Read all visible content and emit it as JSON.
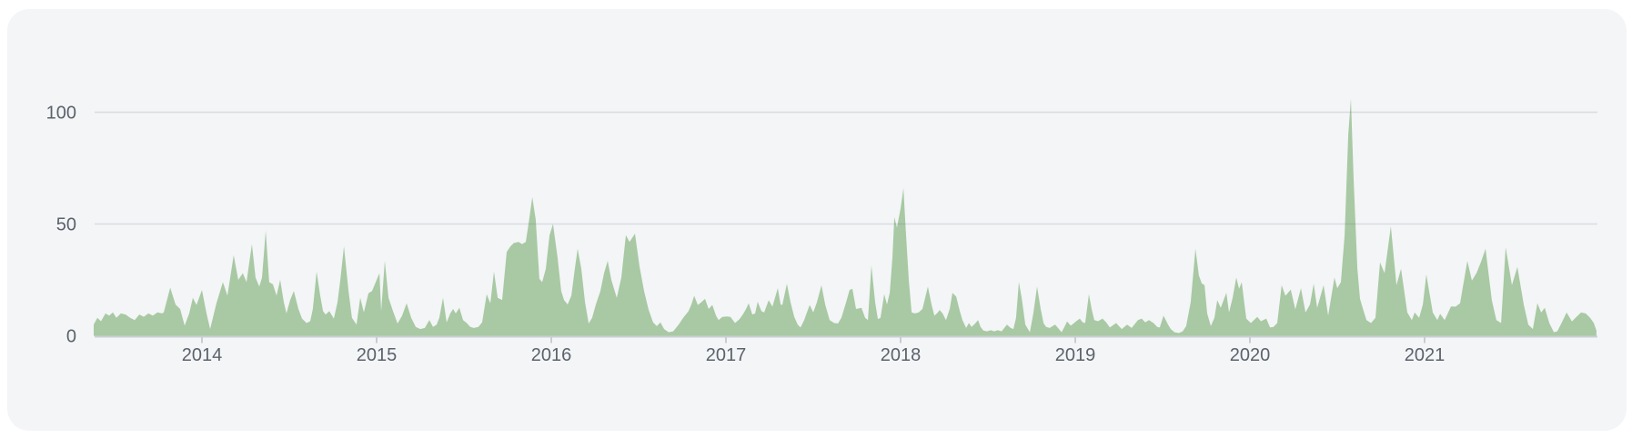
{
  "page": {
    "background": "#ffffff"
  },
  "card": {
    "background": "#f3f5f7",
    "corner_radius": 24
  },
  "chart_data": {
    "type": "area",
    "title": "",
    "xlabel": "",
    "ylabel": "",
    "legend": "none",
    "grid": "horizontal",
    "ylim": [
      0,
      110
    ],
    "xlim": [
      2013.38,
      2021.99
    ],
    "x_ticks": [
      {
        "label": "2014",
        "value": 2014
      },
      {
        "label": "2015",
        "value": 2015
      },
      {
        "label": "2016",
        "value": 2016
      },
      {
        "label": "2017",
        "value": 2017
      },
      {
        "label": "2018",
        "value": 2018
      },
      {
        "label": "2019",
        "value": 2019
      },
      {
        "label": "2020",
        "value": 2020
      },
      {
        "label": "2021",
        "value": 2021
      }
    ],
    "y_ticks": [
      {
        "label": "100",
        "value": 100
      },
      {
        "label": "50",
        "value": 50
      },
      {
        "label": "0",
        "value": 0
      }
    ],
    "style": {
      "area_fill": "#a8c9a3",
      "grid_color": "rgba(100,112,128,0.18)",
      "axis_color": "rgba(100,112,128,0.28)",
      "tick_color": "#c9cdd2",
      "label_color": "#5c626b"
    },
    "points": [
      [
        2013.38,
        5
      ],
      [
        2013.401,
        8
      ],
      [
        2013.422,
        6.5
      ],
      [
        2013.448,
        10
      ],
      [
        2013.469,
        9
      ],
      [
        2013.49,
        10.5
      ],
      [
        2013.51,
        8
      ],
      [
        2013.536,
        10
      ],
      [
        2013.563,
        9.5
      ],
      [
        2013.589,
        8
      ],
      [
        2013.615,
        7
      ],
      [
        2013.641,
        9.5
      ],
      [
        2013.667,
        8.5
      ],
      [
        2013.693,
        10
      ],
      [
        2013.719,
        9
      ],
      [
        2013.745,
        10.5
      ],
      [
        2013.771,
        10
      ],
      [
        2013.781,
        10.4
      ],
      [
        2013.818,
        21.5
      ],
      [
        2013.849,
        14
      ],
      [
        2013.875,
        12
      ],
      [
        2013.901,
        4.5
      ],
      [
        2013.927,
        10
      ],
      [
        2013.948,
        17
      ],
      [
        2013.969,
        13.8
      ],
      [
        2014.0,
        20.5
      ],
      [
        2014.026,
        10
      ],
      [
        2014.047,
        3
      ],
      [
        2014.083,
        14.5
      ],
      [
        2014.12,
        24
      ],
      [
        2014.146,
        18
      ],
      [
        2014.182,
        36
      ],
      [
        2014.208,
        25
      ],
      [
        2014.234,
        28
      ],
      [
        2014.255,
        24
      ],
      [
        2014.286,
        41
      ],
      [
        2014.307,
        26
      ],
      [
        2014.328,
        22
      ],
      [
        2014.344,
        26
      ],
      [
        2014.365,
        47
      ],
      [
        2014.385,
        24
      ],
      [
        2014.406,
        23
      ],
      [
        2014.427,
        18
      ],
      [
        2014.448,
        25
      ],
      [
        2014.469,
        15
      ],
      [
        2014.484,
        10
      ],
      [
        2014.505,
        16
      ],
      [
        2014.526,
        20
      ],
      [
        2014.552,
        12
      ],
      [
        2014.573,
        7.7
      ],
      [
        2014.599,
        5.7
      ],
      [
        2014.62,
        6.5
      ],
      [
        2014.635,
        12
      ],
      [
        2014.656,
        28.7
      ],
      [
        2014.677,
        18
      ],
      [
        2014.693,
        11
      ],
      [
        2014.708,
        9.5
      ],
      [
        2014.729,
        11
      ],
      [
        2014.755,
        7.7
      ],
      [
        2014.776,
        15
      ],
      [
        2014.792,
        25
      ],
      [
        2014.813,
        40
      ],
      [
        2014.839,
        20
      ],
      [
        2014.859,
        8
      ],
      [
        2014.885,
        5
      ],
      [
        2014.906,
        17
      ],
      [
        2014.927,
        10.5
      ],
      [
        2014.953,
        19
      ],
      [
        2014.974,
        20
      ],
      [
        2014.995,
        24
      ],
      [
        2015.016,
        28
      ],
      [
        2015.026,
        11
      ],
      [
        2015.047,
        33.5
      ],
      [
        2015.068,
        17
      ],
      [
        2015.094,
        11
      ],
      [
        2015.12,
        5.5
      ],
      [
        2015.146,
        9
      ],
      [
        2015.172,
        14.5
      ],
      [
        2015.198,
        8
      ],
      [
        2015.224,
        4
      ],
      [
        2015.25,
        3
      ],
      [
        2015.276,
        3.5
      ],
      [
        2015.302,
        7
      ],
      [
        2015.323,
        4
      ],
      [
        2015.344,
        5
      ],
      [
        2015.359,
        8
      ],
      [
        2015.38,
        17
      ],
      [
        2015.401,
        6
      ],
      [
        2015.422,
        10
      ],
      [
        2015.438,
        12
      ],
      [
        2015.453,
        10
      ],
      [
        2015.474,
        12.5
      ],
      [
        2015.495,
        7
      ],
      [
        2015.516,
        5.7
      ],
      [
        2015.536,
        4
      ],
      [
        2015.557,
        3.5
      ],
      [
        2015.583,
        4
      ],
      [
        2015.604,
        6
      ],
      [
        2015.63,
        18.6
      ],
      [
        2015.651,
        14.5
      ],
      [
        2015.672,
        28.7
      ],
      [
        2015.693,
        17
      ],
      [
        2015.719,
        16
      ],
      [
        2015.745,
        37.5
      ],
      [
        2015.766,
        40
      ],
      [
        2015.786,
        41.5
      ],
      [
        2015.813,
        42
      ],
      [
        2015.833,
        41
      ],
      [
        2015.854,
        42
      ],
      [
        2015.87,
        50
      ],
      [
        2015.891,
        62
      ],
      [
        2015.911,
        52
      ],
      [
        2015.932,
        25.5
      ],
      [
        2015.948,
        24
      ],
      [
        2015.969,
        30
      ],
      [
        2015.99,
        45
      ],
      [
        2016.01,
        50
      ],
      [
        2016.036,
        35
      ],
      [
        2016.057,
        20
      ],
      [
        2016.073,
        16
      ],
      [
        2016.094,
        14
      ],
      [
        2016.115,
        18
      ],
      [
        2016.135,
        30
      ],
      [
        2016.151,
        38.9
      ],
      [
        2016.172,
        30
      ],
      [
        2016.193,
        15
      ],
      [
        2016.214,
        5.5
      ],
      [
        2016.234,
        8
      ],
      [
        2016.255,
        14
      ],
      [
        2016.281,
        20
      ],
      [
        2016.302,
        28
      ],
      [
        2016.323,
        33.5
      ],
      [
        2016.344,
        25
      ],
      [
        2016.375,
        17
      ],
      [
        2016.401,
        26
      ],
      [
        2016.427,
        45
      ],
      [
        2016.448,
        42
      ],
      [
        2016.479,
        45.7
      ],
      [
        2016.505,
        31
      ],
      [
        2016.531,
        20
      ],
      [
        2016.557,
        11.8
      ],
      [
        2016.583,
        6
      ],
      [
        2016.604,
        4.3
      ],
      [
        2016.625,
        6
      ],
      [
        2016.646,
        3
      ],
      [
        2016.672,
        1.6
      ],
      [
        2016.698,
        2
      ],
      [
        2016.729,
        5
      ],
      [
        2016.755,
        8
      ],
      [
        2016.786,
        11
      ],
      [
        2016.802,
        14
      ],
      [
        2016.818,
        17.9
      ],
      [
        2016.839,
        13.8
      ],
      [
        2016.859,
        15
      ],
      [
        2016.88,
        16.5
      ],
      [
        2016.901,
        12
      ],
      [
        2016.922,
        13.8
      ],
      [
        2016.943,
        9
      ],
      [
        2016.958,
        7
      ],
      [
        2016.979,
        8.4
      ],
      [
        2017.005,
        8.6
      ],
      [
        2017.026,
        8.4
      ],
      [
        2017.052,
        5.7
      ],
      [
        2017.078,
        7.5
      ],
      [
        2017.099,
        9.8
      ],
      [
        2017.115,
        12
      ],
      [
        2017.13,
        14.5
      ],
      [
        2017.151,
        9.5
      ],
      [
        2017.167,
        10
      ],
      [
        2017.182,
        15.2
      ],
      [
        2017.203,
        11
      ],
      [
        2017.219,
        10.4
      ],
      [
        2017.245,
        15.9
      ],
      [
        2017.266,
        13
      ],
      [
        2017.297,
        21.3
      ],
      [
        2017.313,
        14
      ],
      [
        2017.323,
        13.8
      ],
      [
        2017.349,
        23.3
      ],
      [
        2017.37,
        15
      ],
      [
        2017.391,
        8.4
      ],
      [
        2017.411,
        5
      ],
      [
        2017.427,
        3.7
      ],
      [
        2017.448,
        7
      ],
      [
        2017.479,
        13.8
      ],
      [
        2017.5,
        10.5
      ],
      [
        2017.521,
        15
      ],
      [
        2017.547,
        22.6
      ],
      [
        2017.568,
        14
      ],
      [
        2017.594,
        7
      ],
      [
        2017.62,
        5.7
      ],
      [
        2017.641,
        5.5
      ],
      [
        2017.661,
        8
      ],
      [
        2017.688,
        15
      ],
      [
        2017.708,
        20.5
      ],
      [
        2017.724,
        21
      ],
      [
        2017.745,
        12
      ],
      [
        2017.776,
        12.5
      ],
      [
        2017.797,
        8
      ],
      [
        2017.813,
        7
      ],
      [
        2017.833,
        31.4
      ],
      [
        2017.854,
        15
      ],
      [
        2017.87,
        7.5
      ],
      [
        2017.885,
        8
      ],
      [
        2017.906,
        18.6
      ],
      [
        2017.922,
        14
      ],
      [
        2017.938,
        19.2
      ],
      [
        2017.953,
        35
      ],
      [
        2017.964,
        53
      ],
      [
        2017.979,
        48.4
      ],
      [
        2018.0,
        57
      ],
      [
        2018.016,
        66
      ],
      [
        2018.031,
        45
      ],
      [
        2018.047,
        25
      ],
      [
        2018.063,
        10.4
      ],
      [
        2018.083,
        10
      ],
      [
        2018.104,
        10.5
      ],
      [
        2018.125,
        12
      ],
      [
        2018.156,
        22
      ],
      [
        2018.177,
        14
      ],
      [
        2018.193,
        9
      ],
      [
        2018.208,
        10
      ],
      [
        2018.224,
        11.5
      ],
      [
        2018.24,
        10
      ],
      [
        2018.26,
        7
      ],
      [
        2018.281,
        12
      ],
      [
        2018.297,
        19.2
      ],
      [
        2018.318,
        17.5
      ],
      [
        2018.339,
        11
      ],
      [
        2018.354,
        7
      ],
      [
        2018.375,
        3.5
      ],
      [
        2018.391,
        5.7
      ],
      [
        2018.406,
        4
      ],
      [
        2018.427,
        5.5
      ],
      [
        2018.443,
        7
      ],
      [
        2018.458,
        4
      ],
      [
        2018.474,
        2.3
      ],
      [
        2018.495,
        2
      ],
      [
        2018.516,
        2.5
      ],
      [
        2018.536,
        2
      ],
      [
        2018.557,
        2.5
      ],
      [
        2018.578,
        2
      ],
      [
        2018.594,
        3.5
      ],
      [
        2018.609,
        5
      ],
      [
        2018.63,
        3.5
      ],
      [
        2018.646,
        3
      ],
      [
        2018.661,
        8
      ],
      [
        2018.677,
        24
      ],
      [
        2018.693,
        17
      ],
      [
        2018.714,
        5
      ],
      [
        2018.729,
        3
      ],
      [
        2018.74,
        1.6
      ],
      [
        2018.76,
        10
      ],
      [
        2018.781,
        22
      ],
      [
        2018.802,
        12
      ],
      [
        2018.818,
        5.7
      ],
      [
        2018.833,
        4
      ],
      [
        2018.854,
        3.5
      ],
      [
        2018.87,
        4.3
      ],
      [
        2018.885,
        5
      ],
      [
        2018.901,
        3.5
      ],
      [
        2018.922,
        1.6
      ],
      [
        2018.938,
        4
      ],
      [
        2018.953,
        6.4
      ],
      [
        2018.974,
        4.5
      ],
      [
        2018.99,
        5.5
      ],
      [
        2019.005,
        6.5
      ],
      [
        2019.026,
        7.7
      ],
      [
        2019.042,
        6
      ],
      [
        2019.057,
        5.7
      ],
      [
        2019.078,
        18.6
      ],
      [
        2019.094,
        12
      ],
      [
        2019.109,
        7
      ],
      [
        2019.13,
        6.5
      ],
      [
        2019.156,
        7.7
      ],
      [
        2019.177,
        6
      ],
      [
        2019.198,
        3.7
      ],
      [
        2019.234,
        5.7
      ],
      [
        2019.266,
        3
      ],
      [
        2019.297,
        5
      ],
      [
        2019.323,
        3.5
      ],
      [
        2019.359,
        7
      ],
      [
        2019.38,
        7.7
      ],
      [
        2019.401,
        6
      ],
      [
        2019.422,
        7
      ],
      [
        2019.448,
        5.7
      ],
      [
        2019.469,
        4
      ],
      [
        2019.484,
        3.7
      ],
      [
        2019.505,
        9
      ],
      [
        2019.531,
        5
      ],
      [
        2019.547,
        3
      ],
      [
        2019.568,
        1.6
      ],
      [
        2019.594,
        1.2
      ],
      [
        2019.615,
        2
      ],
      [
        2019.635,
        4.3
      ],
      [
        2019.661,
        15
      ],
      [
        2019.688,
        38.9
      ],
      [
        2019.708,
        27
      ],
      [
        2019.724,
        23.5
      ],
      [
        2019.74,
        22.6
      ],
      [
        2019.755,
        10
      ],
      [
        2019.776,
        4.3
      ],
      [
        2019.797,
        8
      ],
      [
        2019.813,
        15.9
      ],
      [
        2019.833,
        12.5
      ],
      [
        2019.865,
        19.2
      ],
      [
        2019.88,
        10.4
      ],
      [
        2019.901,
        17
      ],
      [
        2019.922,
        26
      ],
      [
        2019.938,
        21
      ],
      [
        2019.953,
        24
      ],
      [
        2019.969,
        14
      ],
      [
        2019.979,
        7.7
      ],
      [
        2020.005,
        5.7
      ],
      [
        2020.042,
        8.4
      ],
      [
        2020.063,
        6.5
      ],
      [
        2020.094,
        7.7
      ],
      [
        2020.115,
        3.7
      ],
      [
        2020.135,
        4
      ],
      [
        2020.156,
        5.7
      ],
      [
        2020.182,
        22.6
      ],
      [
        2020.203,
        17.9
      ],
      [
        2020.234,
        20.6
      ],
      [
        2020.26,
        11.8
      ],
      [
        2020.292,
        21.3
      ],
      [
        2020.318,
        10.4
      ],
      [
        2020.344,
        14
      ],
      [
        2020.365,
        23.3
      ],
      [
        2020.385,
        12.5
      ],
      [
        2020.422,
        22.6
      ],
      [
        2020.448,
        9
      ],
      [
        2020.484,
        26
      ],
      [
        2020.5,
        21.3
      ],
      [
        2020.521,
        24
      ],
      [
        2020.542,
        45
      ],
      [
        2020.563,
        90
      ],
      [
        2020.578,
        106
      ],
      [
        2020.594,
        70
      ],
      [
        2020.615,
        30
      ],
      [
        2020.63,
        16.6
      ],
      [
        2020.651,
        11
      ],
      [
        2020.667,
        7
      ],
      [
        2020.693,
        5.7
      ],
      [
        2020.719,
        8
      ],
      [
        2020.745,
        32.8
      ],
      [
        2020.771,
        28
      ],
      [
        2020.807,
        49
      ],
      [
        2020.839,
        22.6
      ],
      [
        2020.865,
        30
      ],
      [
        2020.901,
        10.4
      ],
      [
        2020.927,
        7
      ],
      [
        2020.943,
        10.4
      ],
      [
        2020.969,
        8
      ],
      [
        2020.99,
        14
      ],
      [
        2021.01,
        27.4
      ],
      [
        2021.047,
        10.4
      ],
      [
        2021.073,
        7
      ],
      [
        2021.089,
        9.8
      ],
      [
        2021.115,
        7
      ],
      [
        2021.151,
        13.1
      ],
      [
        2021.177,
        13
      ],
      [
        2021.203,
        14.5
      ],
      [
        2021.245,
        33.5
      ],
      [
        2021.271,
        24.7
      ],
      [
        2021.297,
        28
      ],
      [
        2021.323,
        33
      ],
      [
        2021.349,
        38.9
      ],
      [
        2021.385,
        15.9
      ],
      [
        2021.411,
        7
      ],
      [
        2021.438,
        5.7
      ],
      [
        2021.464,
        39.6
      ],
      [
        2021.5,
        22.6
      ],
      [
        2021.531,
        30.8
      ],
      [
        2021.568,
        13.8
      ],
      [
        2021.594,
        5
      ],
      [
        2021.62,
        3
      ],
      [
        2021.646,
        14.5
      ],
      [
        2021.667,
        10.4
      ],
      [
        2021.688,
        12.5
      ],
      [
        2021.714,
        5.7
      ],
      [
        2021.74,
        1.6
      ],
      [
        2021.76,
        2
      ],
      [
        2021.786,
        6
      ],
      [
        2021.813,
        10.4
      ],
      [
        2021.844,
        6.4
      ],
      [
        2021.87,
        8.5
      ],
      [
        2021.896,
        10.4
      ],
      [
        2021.922,
        10
      ],
      [
        2021.948,
        8
      ],
      [
        2021.969,
        5.7
      ],
      [
        2021.984,
        2.3
      ]
    ]
  }
}
